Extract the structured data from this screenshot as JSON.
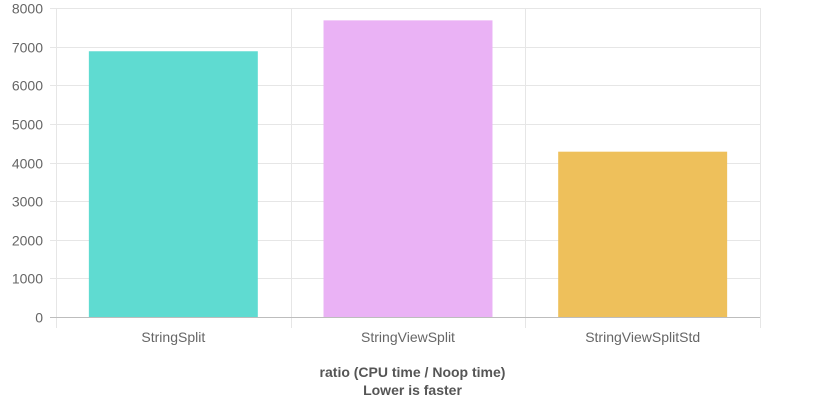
{
  "chart_data": {
    "type": "bar",
    "categories": [
      "StringSplit",
      "StringViewSplit",
      "StringViewSplitStd"
    ],
    "values": [
      6880,
      7680,
      4280
    ],
    "colors": [
      "#5fdbd1",
      "#eab2f5",
      "#eec05b"
    ],
    "ylim": [
      0,
      8000
    ],
    "yticks": [
      0,
      1000,
      2000,
      3000,
      4000,
      5000,
      6000,
      7000,
      8000
    ],
    "xlabel_line1": "ratio (CPU time / Noop time)",
    "xlabel_line2": "Lower is faster",
    "grid": true,
    "legend": "none"
  }
}
